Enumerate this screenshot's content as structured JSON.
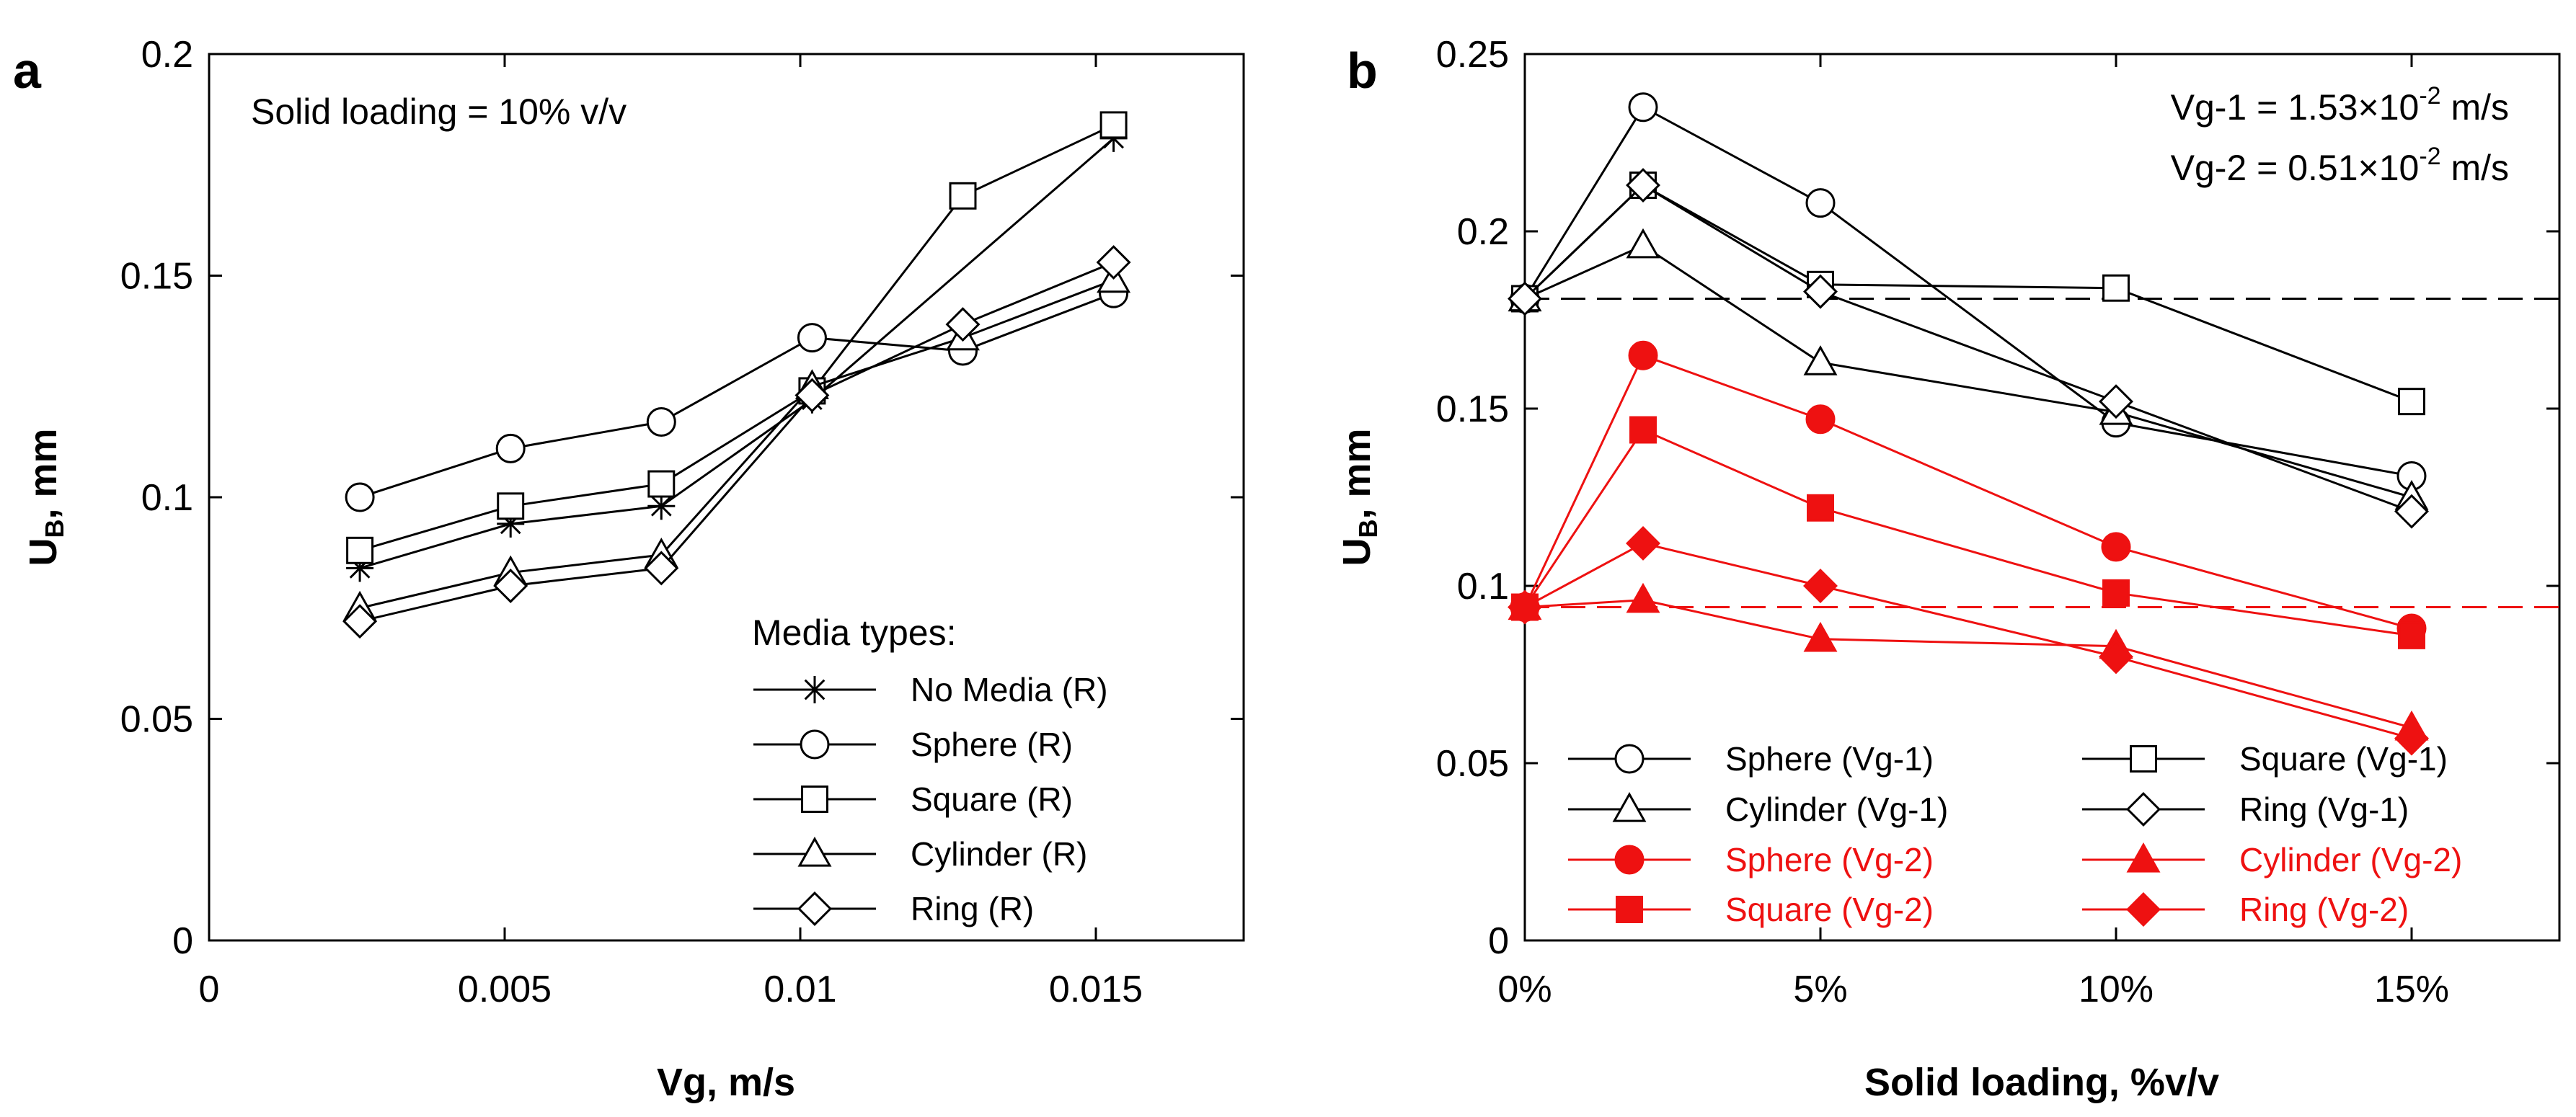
{
  "chart_data": [
    {
      "type": "line",
      "panel": "a",
      "title": "",
      "annotation": "Solid loading = 10% v/v",
      "xlabel": "Vg, m/s",
      "ylabel_main": "U",
      "ylabel_sub": "B",
      "ylabel_tail": ", mm",
      "xlim": [
        0,
        0.0175
      ],
      "ylim": [
        0,
        0.2
      ],
      "xticks": [
        0,
        0.005,
        0.01,
        0.015
      ],
      "xtick_labels": [
        "0",
        "0.005",
        "0.01",
        "0.015"
      ],
      "yticks": [
        0,
        0.05,
        0.1,
        0.15,
        0.2
      ],
      "ytick_labels": [
        "0",
        "0.05",
        "0.1",
        "0.15",
        "0.2"
      ],
      "legend_title": "Media types:",
      "legend_position": "lower-right",
      "series": [
        {
          "name": "No Media (R)",
          "marker": "asterisk",
          "color": "#000000",
          "filled": false,
          "x": [
            0.00255,
            0.0051,
            0.00765,
            0.0102,
            0.0153
          ],
          "y": [
            0.084,
            0.094,
            0.098,
            0.122,
            0.181
          ]
        },
        {
          "name": "Sphere (R)",
          "marker": "circle",
          "color": "#000000",
          "filled": false,
          "x": [
            0.00255,
            0.0051,
            0.00765,
            0.0102,
            0.01275,
            0.0153
          ],
          "y": [
            0.1,
            0.111,
            0.117,
            0.136,
            0.133,
            0.146
          ]
        },
        {
          "name": "Square (R)",
          "marker": "square",
          "color": "#000000",
          "filled": false,
          "x": [
            0.00255,
            0.0051,
            0.00765,
            0.0102,
            0.01275,
            0.0153
          ],
          "y": [
            0.088,
            0.098,
            0.103,
            0.124,
            0.168,
            0.184
          ]
        },
        {
          "name": "Cylinder (R)",
          "marker": "triangle",
          "color": "#000000",
          "filled": false,
          "x": [
            0.00255,
            0.0051,
            0.00765,
            0.0102,
            0.01275,
            0.0153
          ],
          "y": [
            0.075,
            0.083,
            0.087,
            0.125,
            0.136,
            0.149
          ]
        },
        {
          "name": "Ring (R)",
          "marker": "diamond",
          "color": "#000000",
          "filled": false,
          "x": [
            0.00255,
            0.0051,
            0.00765,
            0.0102,
            0.01275,
            0.0153
          ],
          "y": [
            0.072,
            0.08,
            0.084,
            0.123,
            0.139,
            0.153
          ]
        }
      ]
    },
    {
      "type": "line",
      "panel": "b",
      "title": "",
      "annotations": [
        "Vg-1 = 1.53×10",
        "-2",
        " m/s",
        "Vg-2 = 0.51×10",
        "-2",
        " m/s"
      ],
      "xlabel": "Solid loading, %v/v",
      "ylabel_main": "U",
      "ylabel_sub": "B",
      "ylabel_tail": ", mm",
      "xlim": [
        0,
        17.5
      ],
      "ylim": [
        0,
        0.25
      ],
      "xticks": [
        0,
        5,
        10,
        15
      ],
      "xtick_labels": [
        "0%",
        "5%",
        "10%",
        "15%"
      ],
      "yticks": [
        0,
        0.05,
        0.1,
        0.15,
        0.2,
        0.25
      ],
      "ytick_labels": [
        "0",
        "0.05",
        "0.1",
        "0.15",
        "0.2",
        "0.25"
      ],
      "reference_lines": [
        {
          "y": 0.181,
          "color": "#000000",
          "style": "dashed"
        },
        {
          "y": 0.094,
          "color": "#ee1111",
          "style": "dashed"
        }
      ],
      "legend_position": "lower-left",
      "series": [
        {
          "name": "Sphere (Vg-1)",
          "marker": "circle",
          "color": "#000000",
          "filled": false,
          "x": [
            0,
            2,
            5,
            10,
            15
          ],
          "y": [
            0.181,
            0.235,
            0.208,
            0.146,
            0.131
          ]
        },
        {
          "name": "Square (Vg-1)",
          "marker": "square",
          "color": "#000000",
          "filled": false,
          "x": [
            0,
            2,
            5,
            10,
            15
          ],
          "y": [
            0.181,
            0.213,
            0.185,
            0.184,
            0.152
          ]
        },
        {
          "name": "Cylinder (Vg-1)",
          "marker": "triangle",
          "color": "#000000",
          "filled": false,
          "x": [
            0,
            2,
            5,
            10,
            15
          ],
          "y": [
            0.181,
            0.196,
            0.163,
            0.149,
            0.125
          ]
        },
        {
          "name": "Ring (Vg-1)",
          "marker": "diamond",
          "color": "#000000",
          "filled": false,
          "x": [
            0,
            2,
            5,
            10,
            15
          ],
          "y": [
            0.181,
            0.213,
            0.183,
            0.152,
            0.121
          ]
        },
        {
          "name": "Sphere (Vg-2)",
          "marker": "circle",
          "color": "#ee1111",
          "filled": true,
          "x": [
            0,
            2,
            5,
            10,
            15
          ],
          "y": [
            0.094,
            0.165,
            0.147,
            0.111,
            0.088
          ]
        },
        {
          "name": "Cylinder (Vg-2)",
          "marker": "triangle",
          "color": "#ee1111",
          "filled": true,
          "x": [
            0,
            2,
            5,
            10,
            15
          ],
          "y": [
            0.094,
            0.096,
            0.085,
            0.083,
            0.06
          ]
        },
        {
          "name": "Square (Vg-2)",
          "marker": "square",
          "color": "#ee1111",
          "filled": true,
          "x": [
            0,
            2,
            5,
            10,
            15
          ],
          "y": [
            0.094,
            0.144,
            0.122,
            0.098,
            0.086
          ]
        },
        {
          "name": "Ring (Vg-2)",
          "marker": "diamond",
          "color": "#ee1111",
          "filled": true,
          "x": [
            0,
            2,
            5,
            10,
            15
          ],
          "y": [
            0.094,
            0.112,
            0.1,
            0.08,
            0.057
          ]
        }
      ]
    }
  ]
}
